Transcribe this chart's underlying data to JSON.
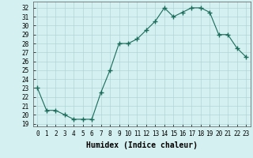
{
  "x": [
    0,
    1,
    2,
    3,
    4,
    5,
    6,
    7,
    8,
    9,
    10,
    11,
    12,
    13,
    14,
    15,
    16,
    17,
    18,
    19,
    20,
    21,
    22,
    23
  ],
  "y": [
    23,
    20.5,
    20.5,
    20,
    19.5,
    19.5,
    19.5,
    22.5,
    25,
    28,
    28,
    28.5,
    29.5,
    30.5,
    32,
    31,
    31.5,
    32,
    32,
    31.5,
    29,
    29,
    27.5,
    26.5
  ],
  "xlabel": "Humidex (Indice chaleur)",
  "ylabel": "",
  "ylim": [
    18.7,
    32.7
  ],
  "xlim": [
    -0.5,
    23.5
  ],
  "yticks": [
    19,
    20,
    21,
    22,
    23,
    24,
    25,
    26,
    27,
    28,
    29,
    30,
    31,
    32
  ],
  "xtick_labels": [
    "0",
    "1",
    "2",
    "3",
    "4",
    "5",
    "6",
    "7",
    "8",
    "9",
    "10",
    "11",
    "12",
    "13",
    "14",
    "15",
    "16",
    "17",
    "18",
    "19",
    "20",
    "21",
    "22",
    "23"
  ],
  "line_color": "#1a6b5a",
  "marker": "+",
  "bg_color": "#d4f0f0",
  "grid_color": "#b0d5d5",
  "axis_fontsize": 6.5,
  "tick_fontsize": 5.5,
  "xlabel_fontsize": 7
}
